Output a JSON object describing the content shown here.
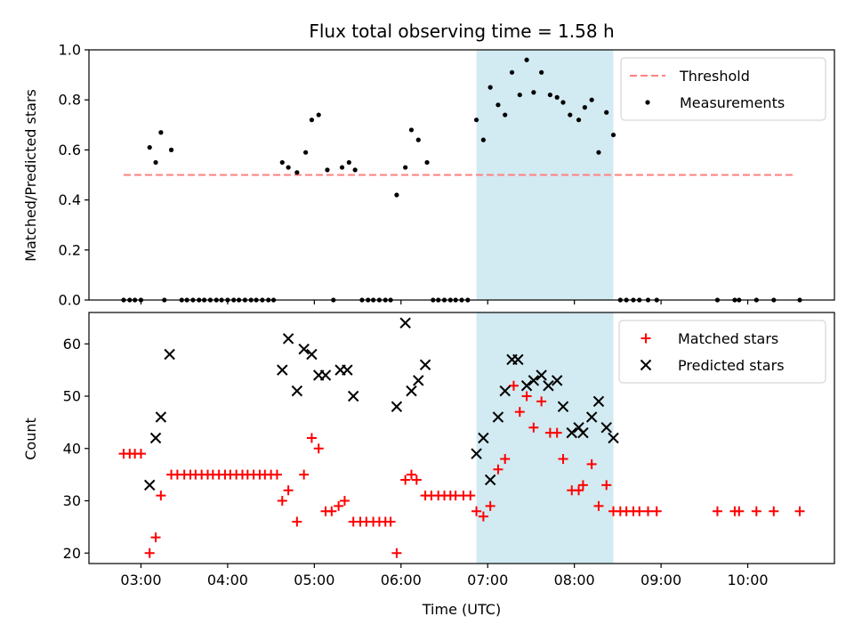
{
  "chart_data": [
    {
      "type": "scatter",
      "title": "Flux total observing time = 1.58 h",
      "xlabel": "",
      "ylabel": "Matched/Predicted stars",
      "ylim": [
        0,
        1.0
      ],
      "yticks": [
        0.0,
        0.2,
        0.4,
        0.6,
        0.8,
        1.0
      ],
      "ytick_labels": [
        "0.0",
        "0.2",
        "0.4",
        "0.6",
        "0.8",
        "1.0"
      ],
      "xlim": [
        2.4,
        11.0
      ],
      "xticks": [
        3,
        4,
        5,
        6,
        7,
        8,
        9,
        10
      ],
      "shaded_region": {
        "x_start": 6.87,
        "x_end": 8.45,
        "color": "#add8e6"
      },
      "legend_position": "top-right",
      "threshold": {
        "name": "Threshold",
        "value": 0.5,
        "x": [
          2.8,
          10.55
        ],
        "color": "#ff8080",
        "style": "dashed"
      },
      "series": [
        {
          "name": "Measurements",
          "color": "#000000",
          "marker": "dot",
          "x": [
            2.8,
            2.87,
            2.93,
            3.0,
            3.1,
            3.17,
            3.23,
            3.27,
            3.35,
            3.47,
            3.53,
            3.6,
            3.67,
            3.73,
            3.8,
            3.87,
            3.93,
            4.0,
            4.07,
            4.13,
            4.2,
            4.27,
            4.33,
            4.4,
            4.47,
            4.53,
            4.63,
            4.7,
            4.8,
            4.9,
            4.97,
            5.05,
            5.15,
            5.22,
            5.32,
            5.4,
            5.47,
            5.55,
            5.62,
            5.68,
            5.75,
            5.82,
            5.88,
            5.95,
            6.05,
            6.12,
            6.2,
            6.3,
            6.37,
            6.43,
            6.5,
            6.57,
            6.63,
            6.7,
            6.77,
            6.87,
            6.95,
            7.03,
            7.12,
            7.2,
            7.28,
            7.37,
            7.45,
            7.53,
            7.62,
            7.72,
            7.8,
            7.87,
            7.95,
            8.05,
            8.12,
            8.2,
            8.28,
            8.37,
            8.45,
            8.53,
            8.6,
            8.68,
            8.75,
            8.85,
            8.95,
            9.65,
            9.85,
            9.9,
            10.1,
            10.3,
            10.6
          ],
          "y": [
            0.0,
            0.0,
            0.0,
            0.0,
            0.61,
            0.55,
            0.67,
            0.0,
            0.6,
            0.0,
            0.0,
            0.0,
            0.0,
            0.0,
            0.0,
            0.0,
            0.0,
            0.0,
            0.0,
            0.0,
            0.0,
            0.0,
            0.0,
            0.0,
            0.0,
            0.0,
            0.55,
            0.53,
            0.51,
            0.59,
            0.72,
            0.74,
            0.52,
            0.0,
            0.53,
            0.55,
            0.52,
            0.0,
            0.0,
            0.0,
            0.0,
            0.0,
            0.0,
            0.42,
            0.53,
            0.68,
            0.64,
            0.55,
            0.0,
            0.0,
            0.0,
            0.0,
            0.0,
            0.0,
            0.0,
            0.72,
            0.64,
            0.85,
            0.78,
            0.74,
            0.91,
            0.82,
            0.96,
            0.83,
            0.91,
            0.82,
            0.81,
            0.79,
            0.74,
            0.72,
            0.77,
            0.8,
            0.59,
            0.75,
            0.66,
            0.0,
            0.0,
            0.0,
            0.0,
            0.0,
            0.0,
            0.0,
            0.0,
            0.0,
            0.0,
            0.0,
            0.0
          ]
        }
      ]
    },
    {
      "type": "scatter",
      "title": "",
      "xlabel": "Time (UTC)",
      "ylabel": "Count",
      "ylim": [
        18,
        66
      ],
      "yticks": [
        20,
        30,
        40,
        50,
        60
      ],
      "ytick_labels": [
        "20",
        "30",
        "40",
        "50",
        "60"
      ],
      "xlim": [
        2.4,
        11.0
      ],
      "xticks": [
        3,
        4,
        5,
        6,
        7,
        8,
        9,
        10
      ],
      "xtick_labels": [
        "03:00",
        "04:00",
        "05:00",
        "06:00",
        "07:00",
        "08:00",
        "09:00",
        "10:00"
      ],
      "shaded_region": {
        "x_start": 6.87,
        "x_end": 8.45,
        "color": "#add8e6"
      },
      "legend_position": "top-right",
      "series": [
        {
          "name": "Matched stars",
          "color": "#ff0000",
          "marker": "plus",
          "x": [
            2.8,
            2.87,
            2.93,
            3.0,
            3.1,
            3.17,
            3.23,
            3.35,
            3.42,
            3.5,
            3.57,
            3.63,
            3.7,
            3.77,
            3.83,
            3.9,
            3.97,
            4.03,
            4.1,
            4.17,
            4.23,
            4.3,
            4.37,
            4.43,
            4.5,
            4.57,
            4.63,
            4.7,
            4.8,
            4.88,
            4.97,
            5.05,
            5.13,
            5.2,
            5.28,
            5.35,
            5.45,
            5.53,
            5.6,
            5.68,
            5.75,
            5.82,
            5.88,
            5.95,
            6.05,
            6.12,
            6.18,
            6.28,
            6.35,
            6.43,
            6.5,
            6.57,
            6.63,
            6.72,
            6.8,
            6.87,
            6.95,
            7.03,
            7.12,
            7.2,
            7.3,
            7.37,
            7.45,
            7.53,
            7.62,
            7.72,
            7.8,
            7.87,
            7.97,
            8.05,
            8.1,
            8.2,
            8.28,
            8.37,
            8.45,
            8.53,
            8.6,
            8.68,
            8.75,
            8.85,
            8.95,
            9.65,
            9.85,
            9.9,
            10.1,
            10.3,
            10.6
          ],
          "y": [
            39,
            39,
            39,
            39,
            20,
            23,
            31,
            35,
            35,
            35,
            35,
            35,
            35,
            35,
            35,
            35,
            35,
            35,
            35,
            35,
            35,
            35,
            35,
            35,
            35,
            35,
            30,
            32,
            26,
            35,
            42,
            40,
            28,
            28,
            29,
            30,
            26,
            26,
            26,
            26,
            26,
            26,
            26,
            20,
            34,
            35,
            34,
            31,
            31,
            31,
            31,
            31,
            31,
            31,
            31,
            28,
            27,
            29,
            36,
            38,
            52,
            47,
            50,
            44,
            49,
            43,
            43,
            38,
            32,
            32,
            33,
            37,
            29,
            33,
            28,
            28,
            28,
            28,
            28,
            28,
            28,
            28,
            28,
            28,
            28,
            28,
            28
          ]
        },
        {
          "name": "Predicted stars",
          "color": "#000000",
          "marker": "x",
          "x": [
            3.1,
            3.17,
            3.23,
            3.33,
            4.63,
            4.7,
            4.8,
            4.88,
            4.97,
            5.05,
            5.13,
            5.3,
            5.38,
            5.45,
            5.95,
            6.05,
            6.12,
            6.2,
            6.28,
            6.87,
            6.95,
            7.03,
            7.12,
            7.2,
            7.28,
            7.35,
            7.45,
            7.53,
            7.62,
            7.7,
            7.8,
            7.87,
            7.97,
            8.05,
            8.1,
            8.2,
            8.28,
            8.37,
            8.45
          ],
          "y": [
            33,
            42,
            46,
            58,
            55,
            61,
            51,
            59,
            58,
            54,
            54,
            55,
            55,
            50,
            48,
            64,
            51,
            53,
            56,
            39,
            42,
            34,
            46,
            51,
            57,
            57,
            52,
            53,
            54,
            52,
            53,
            48,
            43,
            44,
            43,
            46,
            49,
            44,
            42
          ]
        }
      ]
    }
  ]
}
